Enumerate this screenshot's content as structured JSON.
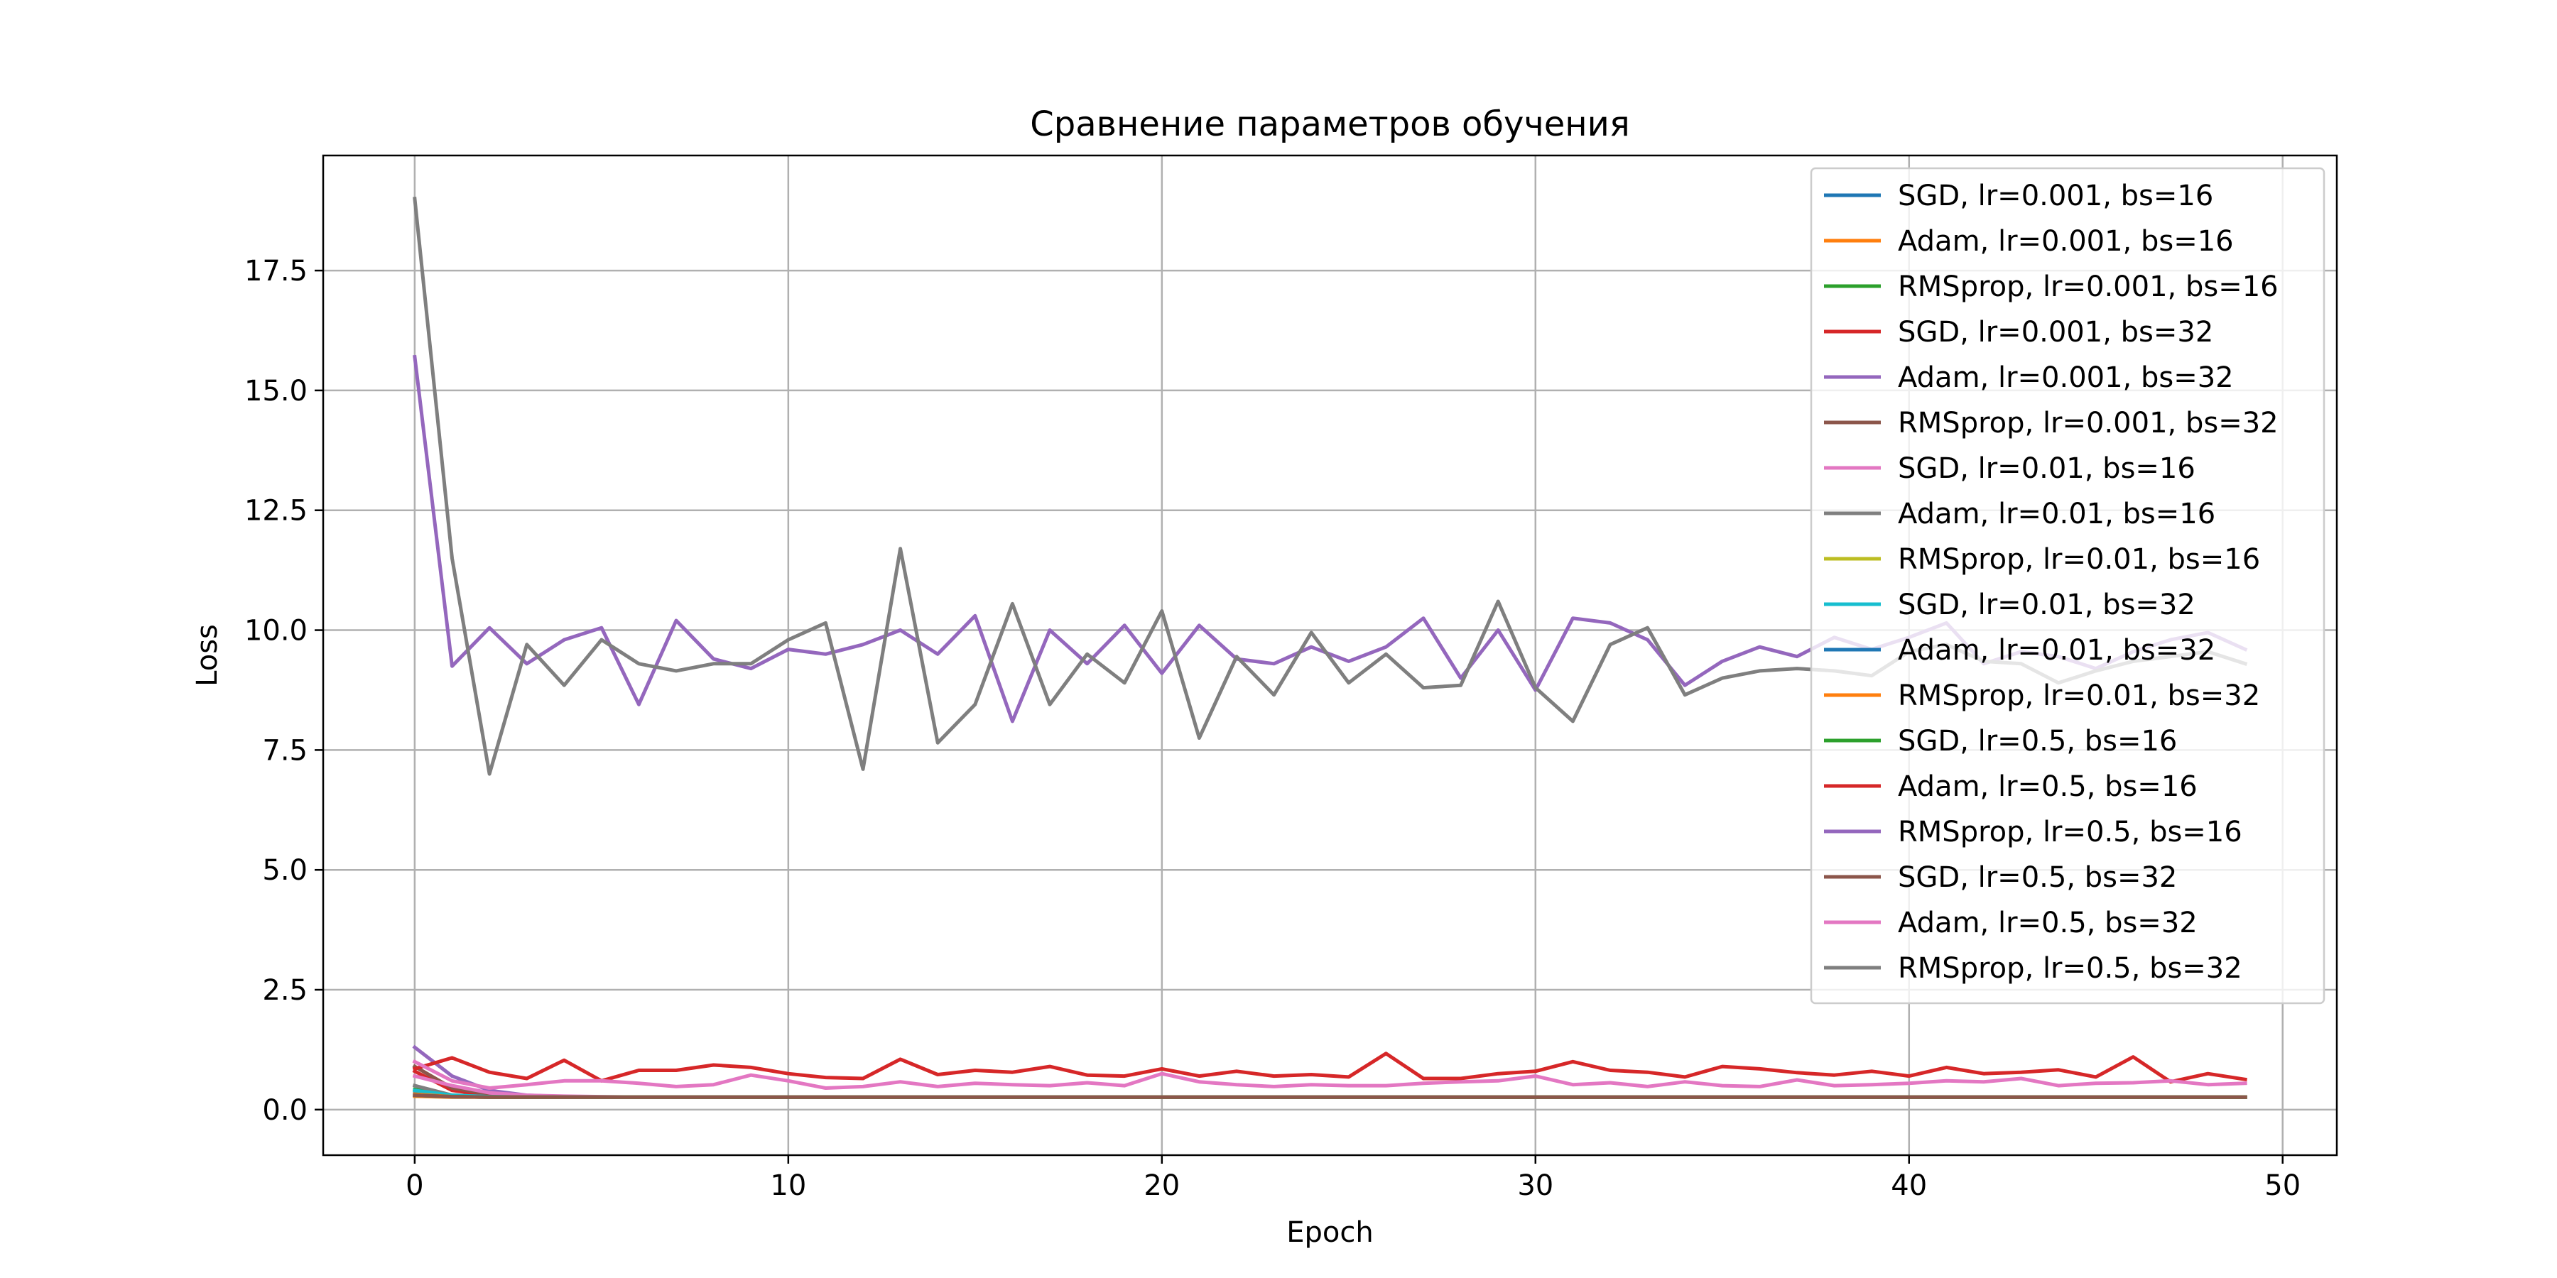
{
  "chart_data": {
    "type": "line",
    "title": "Сравнение параметров обучения",
    "xlabel": "Epoch",
    "ylabel": "Loss",
    "xlim": [
      -2.45,
      51.45
    ],
    "ylim": [
      -0.95,
      19.9
    ],
    "xticks": [
      0,
      10,
      20,
      30,
      40,
      50
    ],
    "yticks": [
      0.0,
      2.5,
      5.0,
      7.5,
      10.0,
      12.5,
      15.0,
      17.5
    ],
    "ytick_labels": [
      "0.0",
      "2.5",
      "5.0",
      "7.5",
      "10.0",
      "12.5",
      "15.0",
      "17.5"
    ],
    "grid": true,
    "legend_position": "top-right",
    "x": [
      0,
      1,
      2,
      3,
      4,
      5,
      6,
      7,
      8,
      9,
      10,
      11,
      12,
      13,
      14,
      15,
      16,
      17,
      18,
      19,
      20,
      21,
      22,
      23,
      24,
      25,
      26,
      27,
      28,
      29,
      30,
      31,
      32,
      33,
      34,
      35,
      36,
      37,
      38,
      39,
      40,
      41,
      42,
      43,
      44,
      45,
      46,
      47,
      48,
      49
    ],
    "series": [
      {
        "name": "SGD, lr=0.001, bs=16",
        "color": "#1f77b4",
        "values": [
          0.35,
          0.3,
          0.28,
          0.27,
          0.26,
          0.26,
          0.26,
          0.26,
          0.26,
          0.26,
          0.26,
          0.26,
          0.26,
          0.26,
          0.26,
          0.26,
          0.26,
          0.26,
          0.26,
          0.26,
          0.26,
          0.26,
          0.26,
          0.26,
          0.26,
          0.26,
          0.26,
          0.26,
          0.26,
          0.26,
          0.26,
          0.26,
          0.26,
          0.26,
          0.26,
          0.26,
          0.26,
          0.26,
          0.26,
          0.26,
          0.26,
          0.26,
          0.26,
          0.26,
          0.26,
          0.26,
          0.26,
          0.26,
          0.26,
          0.26
        ]
      },
      {
        "name": "Adam, lr=0.001, bs=16",
        "color": "#ff7f0e",
        "values": [
          0.28,
          0.26,
          0.26,
          0.26,
          0.26,
          0.26,
          0.26,
          0.26,
          0.26,
          0.26,
          0.26,
          0.26,
          0.26,
          0.26,
          0.26,
          0.26,
          0.26,
          0.26,
          0.26,
          0.26,
          0.26,
          0.26,
          0.26,
          0.26,
          0.26,
          0.26,
          0.26,
          0.26,
          0.26,
          0.26,
          0.26,
          0.26,
          0.26,
          0.26,
          0.26,
          0.26,
          0.26,
          0.26,
          0.26,
          0.26,
          0.26,
          0.26,
          0.26,
          0.26,
          0.26,
          0.26,
          0.26,
          0.26,
          0.26,
          0.26
        ]
      },
      {
        "name": "RMSprop, lr=0.001, bs=16",
        "color": "#2ca02c",
        "values": [
          0.42,
          0.3,
          0.27,
          0.26,
          0.26,
          0.26,
          0.26,
          0.26,
          0.26,
          0.26,
          0.26,
          0.26,
          0.26,
          0.26,
          0.26,
          0.26,
          0.26,
          0.26,
          0.26,
          0.26,
          0.26,
          0.26,
          0.26,
          0.26,
          0.26,
          0.26,
          0.26,
          0.26,
          0.26,
          0.26,
          0.26,
          0.26,
          0.26,
          0.26,
          0.26,
          0.26,
          0.26,
          0.26,
          0.26,
          0.26,
          0.26,
          0.26,
          0.26,
          0.26,
          0.26,
          0.26,
          0.26,
          0.26,
          0.26,
          0.26
        ]
      },
      {
        "name": "SGD, lr=0.001, bs=32",
        "color": "#d62728",
        "values": [
          0.8,
          0.4,
          0.3,
          0.28,
          0.27,
          0.26,
          0.26,
          0.26,
          0.26,
          0.26,
          0.26,
          0.26,
          0.26,
          0.26,
          0.26,
          0.26,
          0.26,
          0.26,
          0.26,
          0.26,
          0.26,
          0.26,
          0.26,
          0.26,
          0.26,
          0.26,
          0.26,
          0.26,
          0.26,
          0.26,
          0.26,
          0.26,
          0.26,
          0.26,
          0.26,
          0.26,
          0.26,
          0.26,
          0.26,
          0.26,
          0.26,
          0.26,
          0.26,
          0.26,
          0.26,
          0.26,
          0.26,
          0.26,
          0.26,
          0.26
        ]
      },
      {
        "name": "Adam, lr=0.001, bs=32",
        "color": "#9467bd",
        "values": [
          1.3,
          0.7,
          0.4,
          0.3,
          0.27,
          0.26,
          0.26,
          0.26,
          0.26,
          0.26,
          0.26,
          0.26,
          0.26,
          0.26,
          0.26,
          0.26,
          0.26,
          0.26,
          0.26,
          0.26,
          0.26,
          0.26,
          0.26,
          0.26,
          0.26,
          0.26,
          0.26,
          0.26,
          0.26,
          0.26,
          0.26,
          0.26,
          0.26,
          0.26,
          0.26,
          0.26,
          0.26,
          0.26,
          0.26,
          0.26,
          0.26,
          0.26,
          0.26,
          0.26,
          0.26,
          0.26,
          0.26,
          0.26,
          0.26,
          0.26
        ]
      },
      {
        "name": "RMSprop, lr=0.001, bs=32",
        "color": "#8c564b",
        "values": [
          0.9,
          0.45,
          0.32,
          0.28,
          0.27,
          0.26,
          0.26,
          0.26,
          0.26,
          0.26,
          0.26,
          0.26,
          0.26,
          0.26,
          0.26,
          0.26,
          0.26,
          0.26,
          0.26,
          0.26,
          0.26,
          0.26,
          0.26,
          0.26,
          0.26,
          0.26,
          0.26,
          0.26,
          0.26,
          0.26,
          0.26,
          0.26,
          0.26,
          0.26,
          0.26,
          0.26,
          0.26,
          0.26,
          0.26,
          0.26,
          0.26,
          0.26,
          0.26,
          0.26,
          0.26,
          0.26,
          0.26,
          0.26,
          0.26,
          0.26
        ]
      },
      {
        "name": "SGD, lr=0.01, bs=16",
        "color": "#e377c2",
        "values": [
          0.7,
          0.5,
          0.35,
          0.3,
          0.28,
          0.27,
          0.26,
          0.26,
          0.26,
          0.26,
          0.26,
          0.26,
          0.26,
          0.26,
          0.26,
          0.26,
          0.26,
          0.26,
          0.26,
          0.26,
          0.26,
          0.26,
          0.26,
          0.26,
          0.26,
          0.26,
          0.26,
          0.26,
          0.26,
          0.26,
          0.26,
          0.26,
          0.26,
          0.26,
          0.26,
          0.26,
          0.26,
          0.26,
          0.26,
          0.26,
          0.26,
          0.26,
          0.26,
          0.26,
          0.26,
          0.26,
          0.26,
          0.26,
          0.26,
          0.26
        ]
      },
      {
        "name": "Adam, lr=0.01, bs=16",
        "color": "#7f7f7f",
        "values": [
          0.5,
          0.3,
          0.27,
          0.26,
          0.26,
          0.26,
          0.26,
          0.26,
          0.26,
          0.26,
          0.26,
          0.26,
          0.26,
          0.26,
          0.26,
          0.26,
          0.26,
          0.26,
          0.26,
          0.26,
          0.26,
          0.26,
          0.26,
          0.26,
          0.26,
          0.26,
          0.26,
          0.26,
          0.26,
          0.26,
          0.26,
          0.26,
          0.26,
          0.26,
          0.26,
          0.26,
          0.26,
          0.26,
          0.26,
          0.26,
          0.26,
          0.26,
          0.26,
          0.26,
          0.26,
          0.26,
          0.26,
          0.26,
          0.26,
          0.26
        ]
      },
      {
        "name": "RMSprop, lr=0.01, bs=16",
        "color": "#bcbd22",
        "values": [
          0.3,
          0.27,
          0.26,
          0.26,
          0.26,
          0.26,
          0.26,
          0.26,
          0.26,
          0.26,
          0.26,
          0.26,
          0.26,
          0.26,
          0.26,
          0.26,
          0.26,
          0.26,
          0.26,
          0.26,
          0.26,
          0.26,
          0.26,
          0.26,
          0.26,
          0.26,
          0.26,
          0.26,
          0.26,
          0.26,
          0.26,
          0.26,
          0.26,
          0.26,
          0.26,
          0.26,
          0.26,
          0.26,
          0.26,
          0.26,
          0.26,
          0.26,
          0.26,
          0.26,
          0.26,
          0.26,
          0.26,
          0.26,
          0.26,
          0.26
        ]
      },
      {
        "name": "SGD, lr=0.01, bs=32",
        "color": "#17becf",
        "values": [
          0.4,
          0.3,
          0.27,
          0.26,
          0.26,
          0.26,
          0.26,
          0.26,
          0.26,
          0.26,
          0.26,
          0.26,
          0.26,
          0.26,
          0.26,
          0.26,
          0.26,
          0.26,
          0.26,
          0.26,
          0.26,
          0.26,
          0.26,
          0.26,
          0.26,
          0.26,
          0.26,
          0.26,
          0.26,
          0.26,
          0.26,
          0.26,
          0.26,
          0.26,
          0.26,
          0.26,
          0.26,
          0.26,
          0.26,
          0.26,
          0.26,
          0.26,
          0.26,
          0.26,
          0.26,
          0.26,
          0.26,
          0.26,
          0.26,
          0.26
        ]
      },
      {
        "name": "Adam, lr=0.01, bs=32",
        "color": "#1f77b4",
        "values": [
          0.3,
          0.27,
          0.26,
          0.26,
          0.26,
          0.26,
          0.26,
          0.26,
          0.26,
          0.26,
          0.26,
          0.26,
          0.26,
          0.26,
          0.26,
          0.26,
          0.26,
          0.26,
          0.26,
          0.26,
          0.26,
          0.26,
          0.26,
          0.26,
          0.26,
          0.26,
          0.26,
          0.26,
          0.26,
          0.26,
          0.26,
          0.26,
          0.26,
          0.26,
          0.26,
          0.26,
          0.26,
          0.26,
          0.26,
          0.26,
          0.26,
          0.26,
          0.26,
          0.26,
          0.26,
          0.26,
          0.26,
          0.26,
          0.26,
          0.26
        ]
      },
      {
        "name": "RMSprop, lr=0.01, bs=32",
        "color": "#ff7f0e",
        "values": [
          0.32,
          0.27,
          0.26,
          0.26,
          0.26,
          0.26,
          0.26,
          0.26,
          0.26,
          0.26,
          0.26,
          0.26,
          0.26,
          0.26,
          0.26,
          0.26,
          0.26,
          0.26,
          0.26,
          0.26,
          0.26,
          0.26,
          0.26,
          0.26,
          0.26,
          0.26,
          0.26,
          0.26,
          0.26,
          0.26,
          0.26,
          0.26,
          0.26,
          0.26,
          0.26,
          0.26,
          0.26,
          0.26,
          0.26,
          0.26,
          0.26,
          0.26,
          0.26,
          0.26,
          0.26,
          0.26,
          0.26,
          0.26,
          0.26,
          0.26
        ]
      },
      {
        "name": "SGD, lr=0.5, bs=16",
        "color": "#2ca02c",
        "values": [
          0.3,
          0.27,
          0.26,
          0.26,
          0.26,
          0.26,
          0.26,
          0.26,
          0.26,
          0.26,
          0.26,
          0.26,
          0.26,
          0.26,
          0.26,
          0.26,
          0.26,
          0.26,
          0.26,
          0.26,
          0.26,
          0.26,
          0.26,
          0.26,
          0.26,
          0.26,
          0.26,
          0.26,
          0.26,
          0.26,
          0.26,
          0.26,
          0.26,
          0.26,
          0.26,
          0.26,
          0.26,
          0.26,
          0.26,
          0.26,
          0.26,
          0.26,
          0.26,
          0.26,
          0.26,
          0.26,
          0.26,
          0.26,
          0.26,
          0.26
        ]
      },
      {
        "name": "Adam, lr=0.5, bs=16",
        "color": "#d62728",
        "values": [
          0.85,
          1.08,
          0.78,
          0.65,
          1.03,
          0.6,
          0.82,
          0.82,
          0.93,
          0.88,
          0.75,
          0.67,
          0.65,
          1.05,
          0.73,
          0.82,
          0.78,
          0.9,
          0.72,
          0.7,
          0.85,
          0.7,
          0.8,
          0.7,
          0.73,
          0.68,
          1.17,
          0.65,
          0.65,
          0.75,
          0.8,
          1.0,
          0.82,
          0.78,
          0.68,
          0.9,
          0.85,
          0.77,
          0.72,
          0.8,
          0.7,
          0.88,
          0.75,
          0.78,
          0.83,
          0.68,
          1.1,
          0.58,
          0.75,
          0.63
        ]
      },
      {
        "name": "RMSprop, lr=0.5, bs=16",
        "color": "#9467bd",
        "values": [
          15.7,
          9.25,
          10.05,
          9.3,
          9.8,
          10.05,
          8.45,
          10.2,
          9.4,
          9.2,
          9.6,
          9.5,
          9.7,
          10.0,
          9.5,
          10.3,
          8.1,
          10.0,
          9.3,
          10.1,
          9.1,
          10.1,
          9.4,
          9.3,
          9.65,
          9.35,
          9.65,
          10.25,
          9.0,
          10.0,
          8.75,
          10.25,
          10.15,
          9.8,
          8.85,
          9.35,
          9.65,
          9.45,
          9.85,
          9.6,
          9.85,
          10.15,
          9.3,
          9.55,
          9.45,
          9.2,
          9.55,
          9.8,
          9.95,
          9.6
        ]
      },
      {
        "name": "SGD, lr=0.5, bs=32",
        "color": "#8c564b",
        "values": [
          0.3,
          0.27,
          0.26,
          0.26,
          0.26,
          0.26,
          0.26,
          0.26,
          0.26,
          0.26,
          0.26,
          0.26,
          0.26,
          0.26,
          0.26,
          0.26,
          0.26,
          0.26,
          0.26,
          0.26,
          0.26,
          0.26,
          0.26,
          0.26,
          0.26,
          0.26,
          0.26,
          0.26,
          0.26,
          0.26,
          0.26,
          0.26,
          0.26,
          0.26,
          0.26,
          0.26,
          0.26,
          0.26,
          0.26,
          0.26,
          0.26,
          0.26,
          0.26,
          0.26,
          0.26,
          0.26,
          0.26,
          0.26,
          0.26,
          0.26
        ]
      },
      {
        "name": "Adam, lr=0.5, bs=32",
        "color": "#e377c2",
        "values": [
          1.0,
          0.6,
          0.45,
          0.52,
          0.6,
          0.6,
          0.55,
          0.48,
          0.52,
          0.72,
          0.6,
          0.45,
          0.48,
          0.58,
          0.48,
          0.55,
          0.52,
          0.5,
          0.56,
          0.5,
          0.75,
          0.58,
          0.52,
          0.48,
          0.52,
          0.5,
          0.5,
          0.55,
          0.58,
          0.6,
          0.7,
          0.52,
          0.56,
          0.48,
          0.58,
          0.5,
          0.48,
          0.62,
          0.5,
          0.52,
          0.55,
          0.6,
          0.58,
          0.65,
          0.5,
          0.55,
          0.56,
          0.6,
          0.52,
          0.55
        ]
      },
      {
        "name": "RMSprop, lr=0.5, bs=32",
        "color": "#7f7f7f",
        "values": [
          19.0,
          11.5,
          7.0,
          9.7,
          8.85,
          9.8,
          9.3,
          9.15,
          9.3,
          9.3,
          9.8,
          10.15,
          7.1,
          11.7,
          7.65,
          8.45,
          10.55,
          8.45,
          9.5,
          8.9,
          10.4,
          7.75,
          9.45,
          8.65,
          9.95,
          8.9,
          9.5,
          8.8,
          8.85,
          10.6,
          8.8,
          8.1,
          9.7,
          10.05,
          8.65,
          9.0,
          9.15,
          9.2,
          9.15,
          9.05,
          9.55,
          9.7,
          9.35,
          9.3,
          8.9,
          9.15,
          9.35,
          9.45,
          9.55,
          9.3
        ]
      }
    ]
  }
}
